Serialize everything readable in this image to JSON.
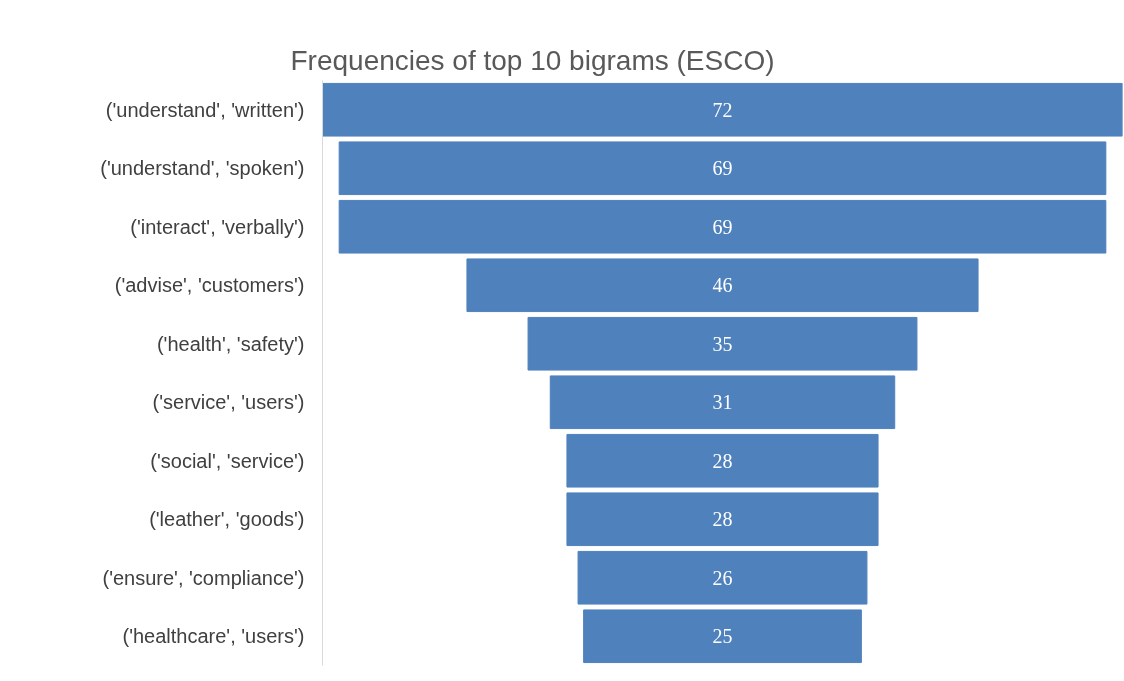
{
  "chart_data": {
    "type": "other",
    "title": "Frequencies of top 10 bigrams (ESCO)",
    "categories": [
      "('understand', 'written')",
      "('understand', 'spoken')",
      "('interact', 'verbally')",
      "('advise', 'customers')",
      "('health', 'safety')",
      "('service', 'users')",
      "('social', 'service')",
      "('leather', 'goods')",
      "('ensure', 'compliance')",
      "('healthcare', 'users')"
    ],
    "values": [
      72,
      69,
      69,
      46,
      35,
      31,
      28,
      28,
      26,
      25
    ],
    "color": "#4f81bd",
    "data_labels": true
  }
}
